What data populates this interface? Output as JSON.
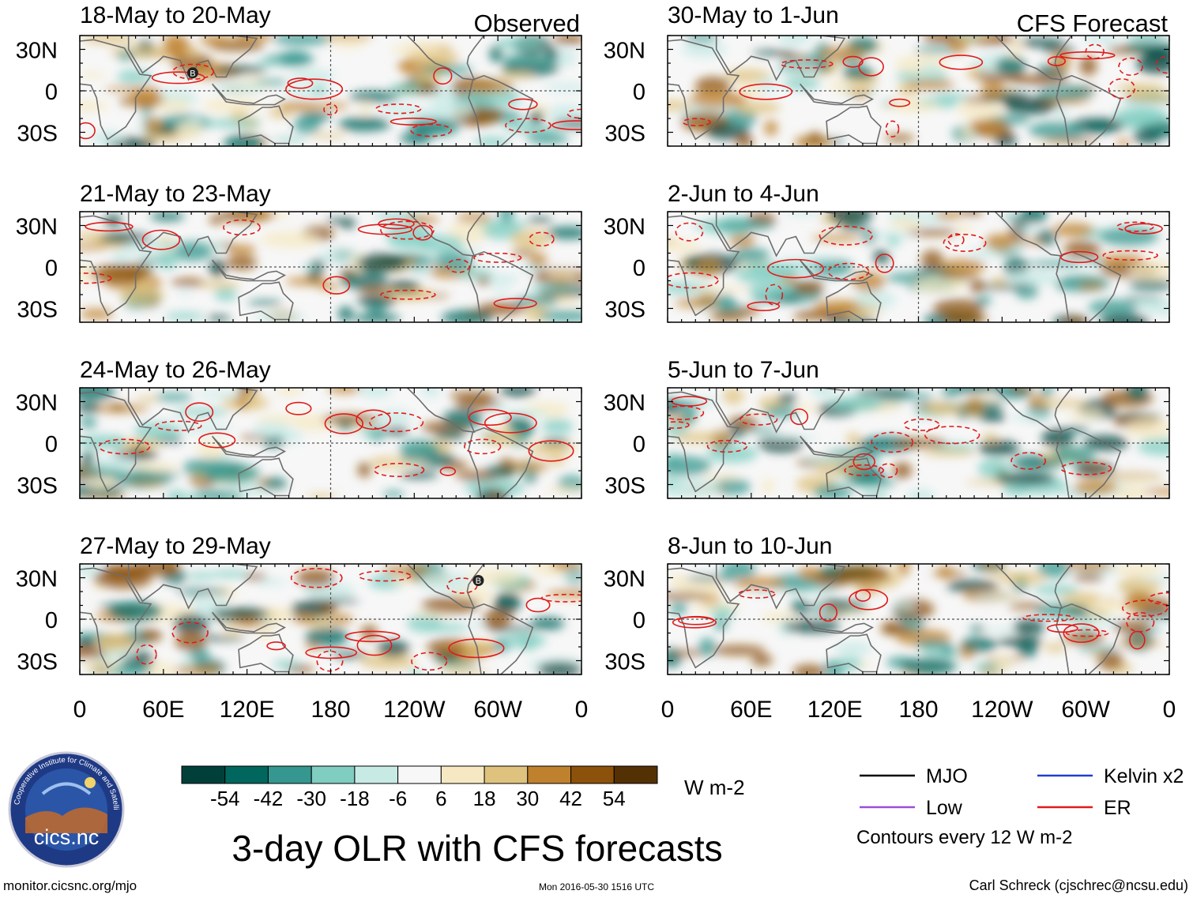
{
  "figure": {
    "title": "3-day OLR with CFS forecasts",
    "source_url": "monitor.cicsnc.org/mjo",
    "timestamp": "Mon 2016-05-30 1516 UTC",
    "author": "Carl Schreck (cjschrec@ncsu.edu)",
    "logo": {
      "text": "cics.nc",
      "ring_text": "Cooperative Institute for Climate and Satellites"
    }
  },
  "chart_data": {
    "type": "heatmap",
    "title": "3-day OLR with CFS forecasts",
    "x_axis": {
      "ticks": [
        "0",
        "60E",
        "120E",
        "180",
        "120W",
        "60W",
        "0"
      ],
      "tick_values_deg": [
        0,
        60,
        120,
        180,
        240,
        300,
        360
      ],
      "range_deg": [
        0,
        360
      ]
    },
    "y_axis": {
      "ticks": [
        "30N",
        "0",
        "30S"
      ],
      "tick_values_deg": [
        30,
        0,
        -30
      ],
      "range_deg": [
        -40,
        40
      ]
    },
    "column_labels": {
      "left": "Observed",
      "right": "CFS Forecast"
    },
    "panels": [
      {
        "period": "18-May to 20-May",
        "kind": "Observed",
        "labels": [
          {
            "text": "B",
            "lon": 81,
            "lat": 13
          }
        ]
      },
      {
        "period": "21-May to 23-May",
        "kind": "Observed",
        "labels": []
      },
      {
        "period": "24-May to 26-May",
        "kind": "Observed",
        "labels": []
      },
      {
        "period": "27-May to 29-May",
        "kind": "Observed",
        "labels": [
          {
            "text": "B",
            "lon": 286,
            "lat": 28
          }
        ]
      },
      {
        "period": "30-May to 1-Jun",
        "kind": "CFS Forecast",
        "labels": []
      },
      {
        "period": "2-Jun to 4-Jun",
        "kind": "CFS Forecast",
        "labels": []
      },
      {
        "period": "5-Jun to 7-Jun",
        "kind": "CFS Forecast",
        "labels": []
      },
      {
        "period": "8-Jun to 10-Jun",
        "kind": "CFS Forecast",
        "labels": []
      }
    ],
    "colorbar": {
      "units": "W m-2",
      "tick_labels": [
        "-54",
        "-42",
        "-30",
        "-18",
        "-6",
        "6",
        "18",
        "30",
        "42",
        "54"
      ],
      "tick_values": [
        -54,
        -42,
        -30,
        -18,
        -6,
        6,
        18,
        30,
        42,
        54
      ],
      "colors": [
        "#01403a",
        "#01665e",
        "#35978f",
        "#80cdc1",
        "#c7eae5",
        "#f7f7f7",
        "#f6e8c3",
        "#dfc27d",
        "#bf812d",
        "#8c510a",
        "#543005"
      ]
    },
    "legend": {
      "entries": [
        {
          "label": "MJO",
          "color": "#000000"
        },
        {
          "label": "Kelvin x2",
          "color": "#1f3fcf"
        },
        {
          "label": "Low",
          "color": "#9b4fd6"
        },
        {
          "label": "ER",
          "color": "#e01b1b"
        }
      ],
      "note": "Contours every 12 W m-2"
    }
  }
}
